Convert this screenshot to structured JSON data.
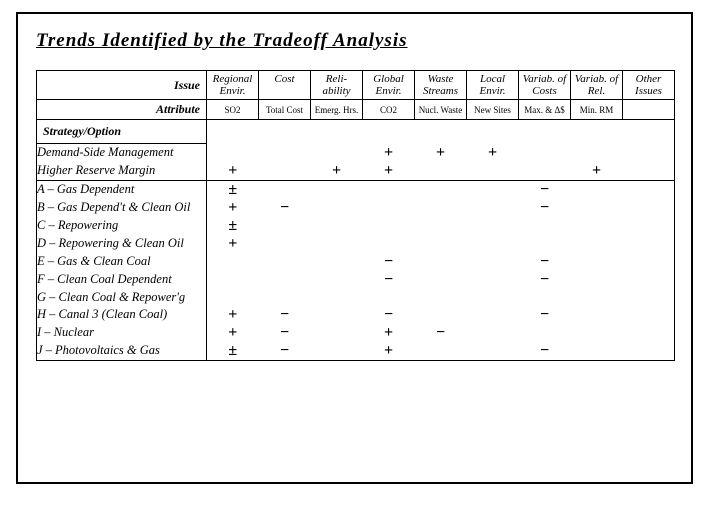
{
  "title": "Trends Identified by the Tradeoff Analysis",
  "header": {
    "issue_label": "Issue",
    "attribute_label": "Attribute",
    "strategy_label": "Strategy/Option",
    "issues": [
      "Regional Envir.",
      "Cost",
      "Reli- ability",
      "Global Envir.",
      "Waste Streams",
      "Local Envir.",
      "Variab. of Costs",
      "Variab. of Rel.",
      "Other Issues"
    ],
    "attributes": [
      "SO2",
      "Total Cost",
      "Emerg. Hrs.",
      "CO2",
      "Nucl. Waste",
      "New Sites",
      "Max. & Δ$",
      "Min. RM",
      ""
    ]
  },
  "rows": [
    {
      "label": "Demand-Side Management",
      "vals": [
        "",
        "",
        "",
        "+",
        "+",
        "+",
        "",
        "",
        ""
      ]
    },
    {
      "label": "Higher Reserve Margin",
      "vals": [
        "+",
        "",
        "+",
        "+",
        "",
        "",
        "",
        "+",
        ""
      ]
    },
    {
      "label": "A – Gas Dependent",
      "vals": [
        "±",
        "",
        "",
        "",
        "",
        "",
        "−",
        "",
        ""
      ],
      "sep": true
    },
    {
      "label": "B – Gas Depend't & Clean Oil",
      "vals": [
        "+",
        "−",
        "",
        "",
        "",
        "",
        "−",
        "",
        ""
      ]
    },
    {
      "label": "C – Repowering",
      "vals": [
        "±",
        "",
        "",
        "",
        "",
        "",
        "",
        "",
        ""
      ]
    },
    {
      "label": "D – Repowering & Clean Oil",
      "vals": [
        "+",
        "",
        "",
        "",
        "",
        "",
        "",
        "",
        ""
      ]
    },
    {
      "label": "E – Gas & Clean Coal",
      "vals": [
        "",
        "",
        "",
        "−",
        "",
        "",
        "−",
        "",
        ""
      ]
    },
    {
      "label": "F – Clean Coal Dependent",
      "vals": [
        "",
        "",
        "",
        "−",
        "",
        "",
        "−",
        "",
        ""
      ]
    },
    {
      "label": "G – Clean Coal & Repower'g",
      "vals": [
        "",
        "",
        "",
        "",
        "",
        "",
        "",
        "",
        ""
      ]
    },
    {
      "label": "H – Canal 3 (Clean Coal)",
      "vals": [
        "+",
        "−",
        "",
        "−",
        "",
        "",
        "−",
        "",
        ""
      ]
    },
    {
      "label": "I – Nuclear",
      "vals": [
        "+",
        "−",
        "",
        "+",
        "−",
        "",
        "",
        "",
        ""
      ]
    },
    {
      "label": "J – Photovoltaics & Gas",
      "vals": [
        "±",
        "−",
        "",
        "+",
        "",
        "",
        "−",
        "",
        ""
      ]
    }
  ]
}
